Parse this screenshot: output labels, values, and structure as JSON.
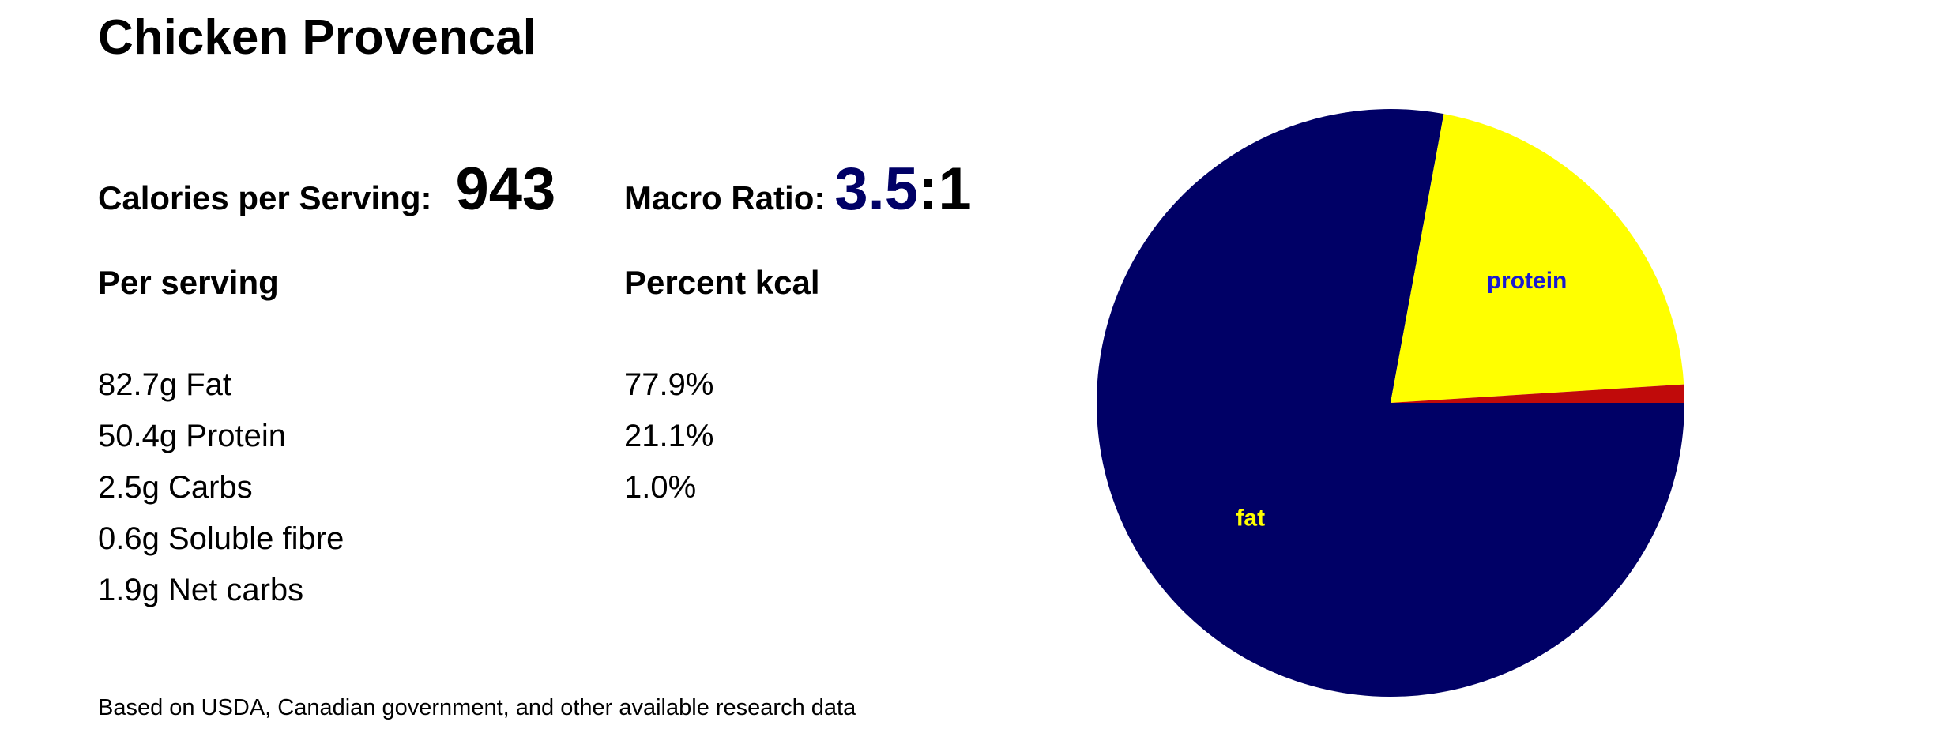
{
  "recipe": {
    "title": "Chicken Provencal"
  },
  "summary": {
    "calories_label": "Calories per Serving:",
    "calories_value": "943",
    "ratio_label": "Macro Ratio:",
    "ratio_numerator": "3.5",
    "ratio_suffix": ":1"
  },
  "columns": {
    "per_serving_heading": "Per serving",
    "percent_heading": "Percent kcal"
  },
  "nutrients": [
    "82.7g Fat",
    "50.4g Protein",
    "2.5g Carbs",
    "0.6g Soluble fibre",
    "1.9g Net carbs"
  ],
  "percents": [
    "77.9%",
    "21.1%",
    "1.0%"
  ],
  "footnote": "Based on USDA, Canadian government, and other available research data",
  "chart_data": {
    "type": "pie",
    "title": "",
    "slices": [
      {
        "label": "fat",
        "value": 77.9,
        "color": "#000066",
        "label_color": "#ffff00"
      },
      {
        "label": "protein",
        "value": 21.1,
        "color": "#ffff00",
        "label_color": "#1a1ad0"
      },
      {
        "label": "",
        "value": 1.0,
        "color": "#c00a0a",
        "label_color": "#ffffff"
      }
    ],
    "start_angle_deg": 0,
    "direction": "clockwise",
    "legend": "none"
  }
}
